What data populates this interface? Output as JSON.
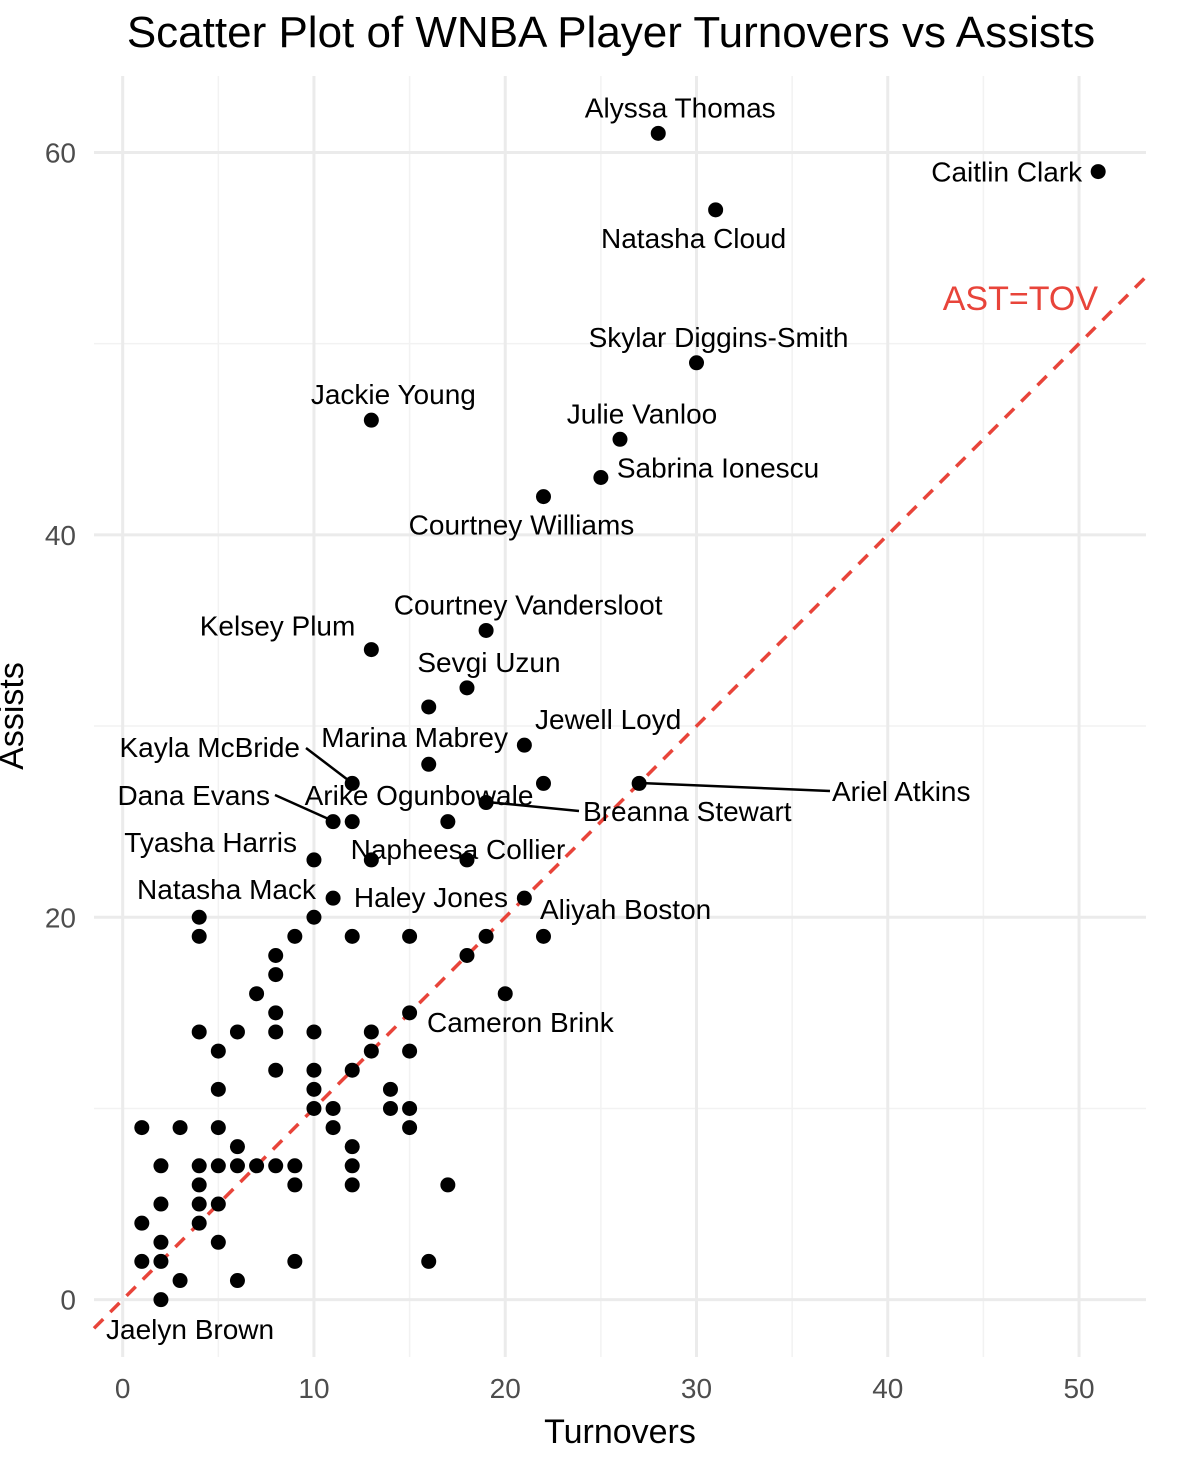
{
  "chart_data": {
    "type": "scatter",
    "title": "Scatter Plot of WNBA Player Turnovers vs Assists",
    "xlabel": "Turnovers",
    "ylabel": "Assists",
    "xlim": [
      -1.5,
      53.5
    ],
    "ylim": [
      -3,
      64
    ],
    "x_ticks": [
      0,
      10,
      20,
      30,
      40,
      50
    ],
    "y_ticks": [
      0,
      20,
      40,
      60
    ],
    "x_tick_labels": [
      "0",
      "10",
      "20",
      "30",
      "40",
      "50"
    ],
    "y_tick_labels": [
      "0",
      "20",
      "40",
      "60"
    ],
    "grid": true,
    "reference_line": {
      "label": "AST=TOV",
      "slope": 1,
      "intercept": 0,
      "style": "dashed",
      "color": "#e8443a"
    },
    "point_color": "#000000",
    "points": [
      {
        "x": 28,
        "y": 61,
        "label": "Alyssa Thomas"
      },
      {
        "x": 51,
        "y": 59,
        "label": "Caitlin Clark"
      },
      {
        "x": 31,
        "y": 57,
        "label": "Natasha Cloud"
      },
      {
        "x": 30,
        "y": 49,
        "label": "Skylar Diggins-Smith"
      },
      {
        "x": 13,
        "y": 46,
        "label": "Jackie Young"
      },
      {
        "x": 26,
        "y": 45,
        "label": "Julie Vanloo"
      },
      {
        "x": 25,
        "y": 43,
        "label": "Sabrina Ionescu"
      },
      {
        "x": 22,
        "y": 42,
        "label": "Courtney Williams"
      },
      {
        "x": 19,
        "y": 35,
        "label": "Courtney Vandersloot"
      },
      {
        "x": 13,
        "y": 34,
        "label": "Kelsey Plum"
      },
      {
        "x": 18,
        "y": 32,
        "label": "Sevgi Uzun"
      },
      {
        "x": 16,
        "y": 31
      },
      {
        "x": 21,
        "y": 29,
        "label": "Jewell Loyd"
      },
      {
        "x": 16,
        "y": 28,
        "label": "Marina Mabrey"
      },
      {
        "x": 12,
        "y": 27,
        "label": "Kayla McBride"
      },
      {
        "x": 22,
        "y": 27
      },
      {
        "x": 27,
        "y": 27,
        "label": "Ariel Atkins"
      },
      {
        "x": 19,
        "y": 26,
        "label": "Breanna Stewart"
      },
      {
        "x": 11,
        "y": 25,
        "label": "Dana Evans"
      },
      {
        "x": 12,
        "y": 25,
        "label": "Arike Ogunbowale"
      },
      {
        "x": 17,
        "y": 25
      },
      {
        "x": 10,
        "y": 23,
        "label": "Tyasha Harris"
      },
      {
        "x": 13,
        "y": 23
      },
      {
        "x": 18,
        "y": 23,
        "label": "Napheesa Collier"
      },
      {
        "x": 11,
        "y": 21,
        "label": "Natasha Mack"
      },
      {
        "x": 21,
        "y": 21,
        "label": "Haley Jones"
      },
      {
        "x": 4,
        "y": 20
      },
      {
        "x": 10,
        "y": 20
      },
      {
        "x": 4,
        "y": 19
      },
      {
        "x": 9,
        "y": 19
      },
      {
        "x": 12,
        "y": 19
      },
      {
        "x": 15,
        "y": 19
      },
      {
        "x": 19,
        "y": 19
      },
      {
        "x": 22,
        "y": 19,
        "label": "Aliyah Boston"
      },
      {
        "x": 8,
        "y": 18
      },
      {
        "x": 18,
        "y": 18
      },
      {
        "x": 8,
        "y": 17
      },
      {
        "x": 7,
        "y": 16
      },
      {
        "x": 20,
        "y": 16
      },
      {
        "x": 8,
        "y": 15
      },
      {
        "x": 15,
        "y": 15,
        "label": "Cameron Brink"
      },
      {
        "x": 4,
        "y": 14
      },
      {
        "x": 6,
        "y": 14
      },
      {
        "x": 8,
        "y": 14
      },
      {
        "x": 10,
        "y": 14
      },
      {
        "x": 13,
        "y": 14
      },
      {
        "x": 5,
        "y": 13
      },
      {
        "x": 13,
        "y": 13
      },
      {
        "x": 15,
        "y": 13
      },
      {
        "x": 8,
        "y": 12
      },
      {
        "x": 10,
        "y": 12
      },
      {
        "x": 12,
        "y": 12
      },
      {
        "x": 5,
        "y": 11
      },
      {
        "x": 10,
        "y": 11
      },
      {
        "x": 14,
        "y": 11
      },
      {
        "x": 10,
        "y": 10
      },
      {
        "x": 11,
        "y": 10
      },
      {
        "x": 14,
        "y": 10
      },
      {
        "x": 15,
        "y": 10
      },
      {
        "x": 1,
        "y": 9
      },
      {
        "x": 3,
        "y": 9
      },
      {
        "x": 5,
        "y": 9
      },
      {
        "x": 11,
        "y": 9
      },
      {
        "x": 15,
        "y": 9
      },
      {
        "x": 6,
        "y": 8
      },
      {
        "x": 12,
        "y": 8
      },
      {
        "x": 2,
        "y": 7
      },
      {
        "x": 4,
        "y": 7
      },
      {
        "x": 5,
        "y": 7
      },
      {
        "x": 6,
        "y": 7
      },
      {
        "x": 7,
        "y": 7
      },
      {
        "x": 8,
        "y": 7
      },
      {
        "x": 9,
        "y": 7
      },
      {
        "x": 12,
        "y": 7
      },
      {
        "x": 4,
        "y": 6
      },
      {
        "x": 9,
        "y": 6
      },
      {
        "x": 12,
        "y": 6
      },
      {
        "x": 17,
        "y": 6
      },
      {
        "x": 2,
        "y": 5
      },
      {
        "x": 4,
        "y": 5
      },
      {
        "x": 5,
        "y": 5
      },
      {
        "x": 1,
        "y": 4
      },
      {
        "x": 4,
        "y": 4
      },
      {
        "x": 2,
        "y": 3
      },
      {
        "x": 5,
        "y": 3
      },
      {
        "x": 1,
        "y": 2
      },
      {
        "x": 2,
        "y": 2
      },
      {
        "x": 9,
        "y": 2
      },
      {
        "x": 16,
        "y": 2
      },
      {
        "x": 3,
        "y": 1
      },
      {
        "x": 6,
        "y": 1
      },
      {
        "x": 2,
        "y": 0,
        "label": "Jaelyn Brown"
      }
    ]
  }
}
